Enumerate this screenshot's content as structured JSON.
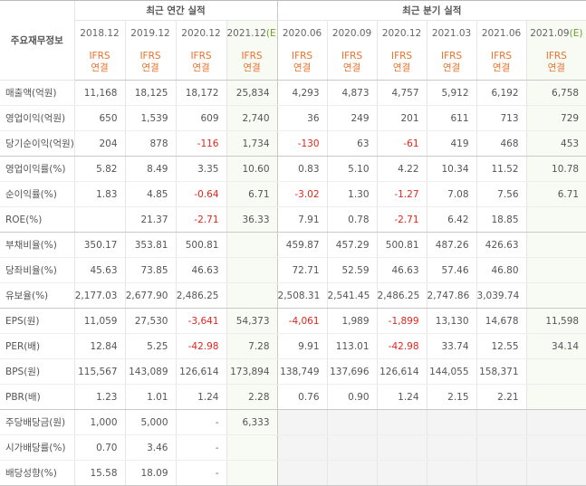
{
  "table": {
    "corner": "주요재무정보",
    "groups": [
      {
        "title": "최근 연간 실적",
        "span": 4
      },
      {
        "title": "최근 분기 실적",
        "span": 6
      }
    ],
    "columns": [
      {
        "period": "2018.12",
        "standard": "IFRS",
        "consolidation": "연결"
      },
      {
        "period": "2019.12",
        "standard": "IFRS",
        "consolidation": "연결"
      },
      {
        "period": "2020.12",
        "standard": "IFRS",
        "consolidation": "연결"
      },
      {
        "period": "2021.12",
        "estimate": "(E)",
        "standard": "IFRS",
        "consolidation": "연결"
      },
      {
        "period": "2020.06",
        "standard": "IFRS",
        "consolidation": "연결"
      },
      {
        "period": "2020.09",
        "standard": "IFRS",
        "consolidation": "연결"
      },
      {
        "period": "2020.12",
        "standard": "IFRS",
        "consolidation": "연결"
      },
      {
        "period": "2021.03",
        "standard": "IFRS",
        "consolidation": "연결"
      },
      {
        "period": "2021.06",
        "standard": "IFRS",
        "consolidation": "연결"
      },
      {
        "period": "2021.09",
        "estimate": "(E)",
        "standard": "IFRS",
        "consolidation": "연결"
      }
    ],
    "rows": [
      {
        "name": "매출액(억원)",
        "values": [
          "11,168",
          "18,125",
          "18,172",
          "25,834",
          "4,293",
          "4,873",
          "4,757",
          "5,912",
          "6,192",
          "6,758"
        ]
      },
      {
        "name": "영업이익(억원)",
        "values": [
          "650",
          "1,539",
          "609",
          "2,740",
          "36",
          "249",
          "201",
          "611",
          "713",
          "729"
        ]
      },
      {
        "name": "당기순이익(억원)",
        "values": [
          "204",
          "878",
          "-116",
          "1,734",
          "-130",
          "63",
          "-61",
          "419",
          "468",
          "453"
        ]
      },
      {
        "name": "영업이익률(%)",
        "values": [
          "5.82",
          "8.49",
          "3.35",
          "10.60",
          "0.83",
          "5.10",
          "4.22",
          "10.34",
          "11.52",
          "10.78"
        ]
      },
      {
        "name": "순이익률(%)",
        "values": [
          "1.83",
          "4.85",
          "-0.64",
          "6.71",
          "-3.02",
          "1.30",
          "-1.27",
          "7.08",
          "7.56",
          "6.71"
        ]
      },
      {
        "name": "ROE(%)",
        "values": [
          null,
          "21.37",
          "-2.71",
          "36.33",
          "7.91",
          "0.78",
          "-2.71",
          "6.42",
          "18.85",
          null
        ]
      },
      {
        "name": "부채비율(%)",
        "values": [
          "350.17",
          "353.81",
          "500.81",
          null,
          "459.87",
          "457.29",
          "500.81",
          "487.26",
          "426.63",
          null
        ]
      },
      {
        "name": "당좌비율(%)",
        "values": [
          "45.63",
          "73.85",
          "46.63",
          null,
          "72.71",
          "52.59",
          "46.63",
          "57.46",
          "46.80",
          null
        ]
      },
      {
        "name": "유보율(%)",
        "values": [
          "2,177.03",
          "2,677.90",
          "2,486.25",
          null,
          "2,508.31",
          "2,541.45",
          "2,486.25",
          "2,747.86",
          "3,039.74",
          null
        ]
      },
      {
        "name": "EPS(원)",
        "values": [
          "11,059",
          "27,530",
          "-3,641",
          "54,373",
          "-4,061",
          "1,989",
          "-1,899",
          "13,130",
          "14,678",
          "11,598"
        ]
      },
      {
        "name": "PER(배)",
        "values": [
          "12.84",
          "5.25",
          "-42.98",
          "7.28",
          "9.91",
          "113.01",
          "-42.98",
          "33.74",
          "12.55",
          "34.14"
        ]
      },
      {
        "name": "BPS(원)",
        "values": [
          "115,567",
          "143,089",
          "126,614",
          "173,894",
          "138,749",
          "137,696",
          "126,614",
          "144,055",
          "158,371",
          null
        ]
      },
      {
        "name": "PBR(배)",
        "values": [
          "1.23",
          "1.01",
          "1.24",
          "2.28",
          "0.76",
          "0.90",
          "1.24",
          "2.15",
          "2.21",
          null
        ]
      },
      {
        "name": "주당배당금(원)",
        "values": [
          "1,000",
          "5,000",
          "-",
          "6,333",
          null,
          null,
          null,
          null,
          null,
          null
        ]
      },
      {
        "name": "시가배당률(%)",
        "values": [
          "0.70",
          "3.46",
          "-",
          null,
          null,
          null,
          null,
          null,
          null,
          null
        ]
      },
      {
        "name": "배당성향(%)",
        "values": [
          "15.58",
          "18.09",
          "-",
          null,
          null,
          null,
          null,
          null,
          null,
          null
        ]
      }
    ],
    "row_groups": [
      3,
      3,
      3,
      4,
      3
    ]
  }
}
